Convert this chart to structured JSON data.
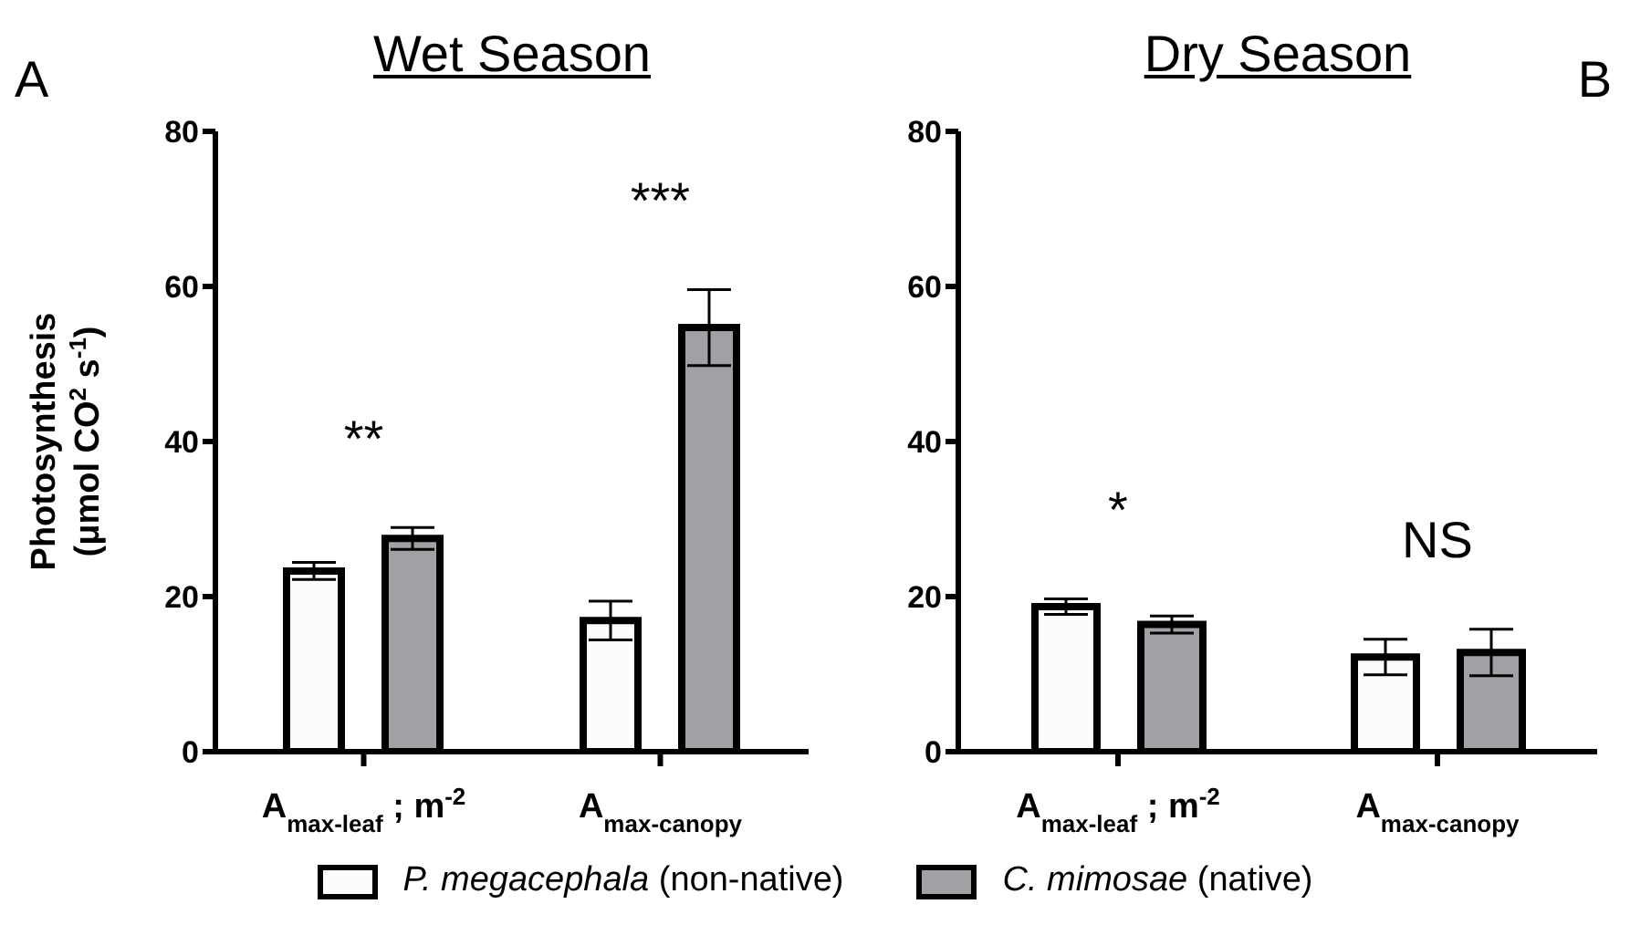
{
  "chart_data": [
    {
      "type": "bar",
      "title": "Wet Season",
      "ylabel": "Photosynthesis\n(μmol CO$^{2}$ s$^{-1}$)",
      "categories": [
        "A$_{max-leaf}$ ; m$^{-2}$",
        "A$_{max-canopy}$"
      ],
      "series": [
        {
          "name": "P. megacephala (non-native)",
          "color": "#fcfcfc",
          "values": [
            23.3,
            16.9
          ],
          "errors": [
            1.1,
            2.5
          ]
        },
        {
          "name": "C. mimosae (native)",
          "color": "#a1a1a5",
          "values": [
            27.5,
            54.7
          ],
          "errors": [
            1.4,
            4.9
          ]
        }
      ],
      "ylim": [
        0,
        80
      ],
      "yticks": [
        0,
        20,
        40,
        60,
        80
      ],
      "legend": "bottom",
      "annotations": [
        "A",
        "**",
        "***"
      ]
    },
    {
      "type": "bar",
      "title": "Dry Season",
      "categories": [
        "A$_{max-leaf}$ ; m$^{-2}$",
        "A$_{max-canopy}$"
      ],
      "series": [
        {
          "color": "#fcfcfc",
          "values": [
            18.7,
            12.2
          ],
          "errors": [
            1.0,
            2.3
          ]
        },
        {
          "color": "#a1a1a5",
          "values": [
            16.4,
            12.8
          ],
          "errors": [
            1.1,
            3.0
          ]
        }
      ],
      "ylim": [
        0,
        80
      ],
      "yticks": [
        0,
        20,
        40,
        60,
        80
      ],
      "annotations": [
        "B",
        "*",
        "NS"
      ]
    }
  ]
}
